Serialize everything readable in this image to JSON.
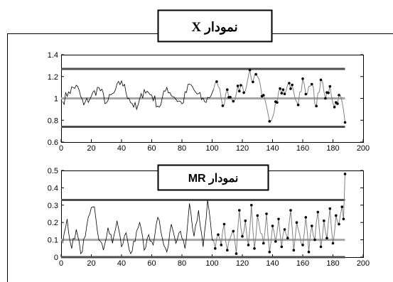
{
  "colors": {
    "limit_line": "#4d4d4d",
    "center_line": "#a6a6a6",
    "series_line": "#000000",
    "phase2_line": "#808080",
    "point": "#000000"
  },
  "chart_data": [
    {
      "type": "line",
      "title_text": "نمودار",
      "title_symbol": "X",
      "xlim": [
        0,
        200
      ],
      "ylim": [
        0.6,
        1.4
      ],
      "xticks": [
        0,
        20,
        40,
        60,
        80,
        100,
        120,
        140,
        160,
        180,
        200
      ],
      "yticks": [
        0.6,
        0.8,
        1,
        1.2,
        1.4
      ],
      "ytick_labels": [
        "0.6",
        "0.8",
        "1",
        "1.2",
        "1.4"
      ],
      "ucl": 1.27,
      "cl": 1.0,
      "lcl": 0.74,
      "limit_x_end": 188,
      "phase2_start": 101,
      "series_anchors": [
        [
          1,
          0.97
        ],
        [
          5,
          1.06
        ],
        [
          10,
          1.12
        ],
        [
          15,
          0.94
        ],
        [
          20,
          1.02
        ],
        [
          25,
          1.1
        ],
        [
          30,
          0.96
        ],
        [
          35,
          1.05
        ],
        [
          40,
          1.16
        ],
        [
          45,
          1.0
        ],
        [
          50,
          0.9
        ],
        [
          55,
          1.08
        ],
        [
          60,
          1.03
        ],
        [
          65,
          0.92
        ],
        [
          70,
          1.1
        ],
        [
          75,
          1.01
        ],
        [
          80,
          0.95
        ],
        [
          85,
          1.13
        ],
        [
          90,
          1.04
        ],
        [
          95,
          0.97
        ],
        [
          100,
          1.05
        ],
        [
          102,
          1.14
        ],
        [
          104,
          1.11
        ],
        [
          106,
          1.0
        ],
        [
          108,
          0.94
        ],
        [
          110,
          1.08
        ],
        [
          113,
          0.99
        ],
        [
          116,
          1.04
        ],
        [
          119,
          1.12
        ],
        [
          122,
          1.07
        ],
        [
          125,
          1.26
        ],
        [
          127,
          1.15
        ],
        [
          130,
          1.2
        ],
        [
          133,
          1.02
        ],
        [
          136,
          0.93
        ],
        [
          139,
          0.79
        ],
        [
          142,
          0.97
        ],
        [
          145,
          1.09
        ],
        [
          148,
          1.04
        ],
        [
          151,
          1.14
        ],
        [
          154,
          1.06
        ],
        [
          157,
          0.94
        ],
        [
          160,
          1.18
        ],
        [
          163,
          1.04
        ],
        [
          166,
          1.13
        ],
        [
          169,
          0.93
        ],
        [
          172,
          1.17
        ],
        [
          175,
          1.0
        ],
        [
          178,
          1.11
        ],
        [
          181,
          0.92
        ],
        [
          184,
          1.03
        ],
        [
          186,
          0.97
        ],
        [
          188,
          0.78
        ]
      ]
    },
    {
      "type": "line",
      "title_text": "نمودار",
      "title_symbol": "MR",
      "xlim": [
        0,
        200
      ],
      "ylim": [
        0,
        0.5
      ],
      "xticks": [
        0,
        20,
        40,
        60,
        80,
        100,
        120,
        140,
        160,
        180,
        200
      ],
      "yticks": [
        0,
        0.1,
        0.2,
        0.3,
        0.4,
        0.5
      ],
      "ytick_labels": [
        "0",
        "0.1",
        "0.2",
        "0.3",
        "0.4",
        "0.5"
      ],
      "ucl": 0.33,
      "cl": 0.1,
      "lcl": 0.0,
      "limit_x_end": 188,
      "phase2_start": 101,
      "series_anchors": [
        [
          1,
          0.08
        ],
        [
          4,
          0.22
        ],
        [
          7,
          0.05
        ],
        [
          10,
          0.16
        ],
        [
          13,
          0.02
        ],
        [
          16,
          0.12
        ],
        [
          19,
          0.25
        ],
        [
          22,
          0.29
        ],
        [
          25,
          0.1
        ],
        [
          28,
          0.04
        ],
        [
          31,
          0.17
        ],
        [
          34,
          0.08
        ],
        [
          37,
          0.21
        ],
        [
          40,
          0.06
        ],
        [
          43,
          0.14
        ],
        [
          46,
          0.02
        ],
        [
          49,
          0.09
        ],
        [
          52,
          0.2
        ],
        [
          55,
          0.04
        ],
        [
          58,
          0.13
        ],
        [
          61,
          0.07
        ],
        [
          64,
          0.23
        ],
        [
          67,
          0.11
        ],
        [
          70,
          0.03
        ],
        [
          73,
          0.19
        ],
        [
          76,
          0.08
        ],
        [
          79,
          0.15
        ],
        [
          82,
          0.05
        ],
        [
          85,
          0.31
        ],
        [
          88,
          0.12
        ],
        [
          91,
          0.27
        ],
        [
          94,
          0.06
        ],
        [
          97,
          0.33
        ],
        [
          100,
          0.1
        ],
        [
          102,
          0.05
        ],
        [
          104,
          0.13
        ],
        [
          106,
          0.07
        ],
        [
          108,
          0.19
        ],
        [
          110,
          0.04
        ],
        [
          112,
          0.11
        ],
        [
          114,
          0.15
        ],
        [
          116,
          0.02
        ],
        [
          118,
          0.27
        ],
        [
          120,
          0.12
        ],
        [
          122,
          0.21
        ],
        [
          124,
          0.07
        ],
        [
          126,
          0.3
        ],
        [
          128,
          0.05
        ],
        [
          130,
          0.24
        ],
        [
          132,
          0.14
        ],
        [
          134,
          0.08
        ],
        [
          136,
          0.25
        ],
        [
          138,
          0.03
        ],
        [
          140,
          0.18
        ],
        [
          142,
          0.09
        ],
        [
          144,
          0.22
        ],
        [
          146,
          0.06
        ],
        [
          148,
          0.16
        ],
        [
          150,
          0.11
        ],
        [
          152,
          0.27
        ],
        [
          154,
          0.04
        ],
        [
          156,
          0.2
        ],
        [
          158,
          0.13
        ],
        [
          160,
          0.07
        ],
        [
          162,
          0.23
        ],
        [
          164,
          0.03
        ],
        [
          166,
          0.18
        ],
        [
          168,
          0.1
        ],
        [
          170,
          0.26
        ],
        [
          172,
          0.06
        ],
        [
          174,
          0.21
        ],
        [
          176,
          0.11
        ],
        [
          178,
          0.28
        ],
        [
          180,
          0.08
        ],
        [
          182,
          0.24
        ],
        [
          184,
          0.19
        ],
        [
          186,
          0.29
        ],
        [
          187,
          0.22
        ],
        [
          188,
          0.48
        ]
      ]
    }
  ]
}
